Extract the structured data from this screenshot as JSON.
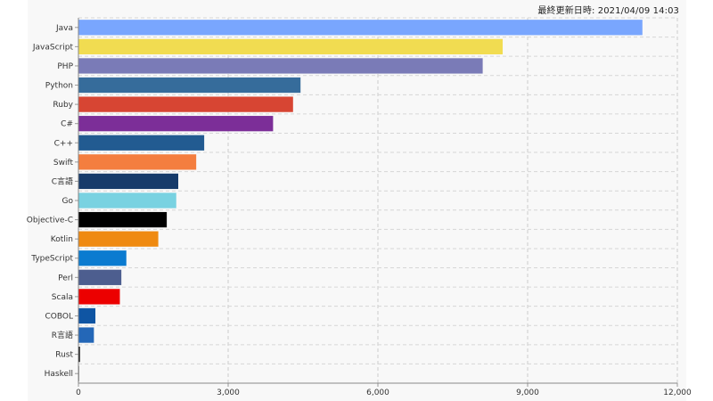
{
  "header": {
    "last_updated": "最終更新日時: 2021/04/09 14:03"
  },
  "chart_data": {
    "type": "bar",
    "orientation": "horizontal",
    "categories": [
      "Java",
      "JavaScript",
      "PHP",
      "Python",
      "Ruby",
      "C#",
      "C++",
      "Swift",
      "C言語",
      "Go",
      "Objective-C",
      "Kotlin",
      "TypeScript",
      "Perl",
      "Scala",
      "COBOL",
      "R言語",
      "Rust",
      "Haskell"
    ],
    "values": [
      11300,
      8500,
      8100,
      4450,
      4300,
      3900,
      2520,
      2360,
      2000,
      1960,
      1770,
      1600,
      960,
      860,
      830,
      340,
      310,
      30,
      10
    ],
    "colors": [
      "#79a6fe",
      "#f1dc51",
      "#7a7bb7",
      "#366c9b",
      "#d74533",
      "#7c2e98",
      "#225b91",
      "#f47e3f",
      "#173b6a",
      "#79d2e1",
      "#000000",
      "#ef8a11",
      "#0b7bd0",
      "#4d5e8f",
      "#ec0000",
      "#0f55a3",
      "#2467b7",
      "#000000",
      "#999999"
    ],
    "xlim": [
      0,
      12000
    ],
    "xticks": [
      0,
      3000,
      6000,
      9000,
      12000
    ],
    "xtick_labels": [
      "0",
      "3,000",
      "6,000",
      "9,000",
      "12,000"
    ],
    "grid": true,
    "legend": false,
    "title": "",
    "xlabel": "",
    "ylabel": ""
  }
}
